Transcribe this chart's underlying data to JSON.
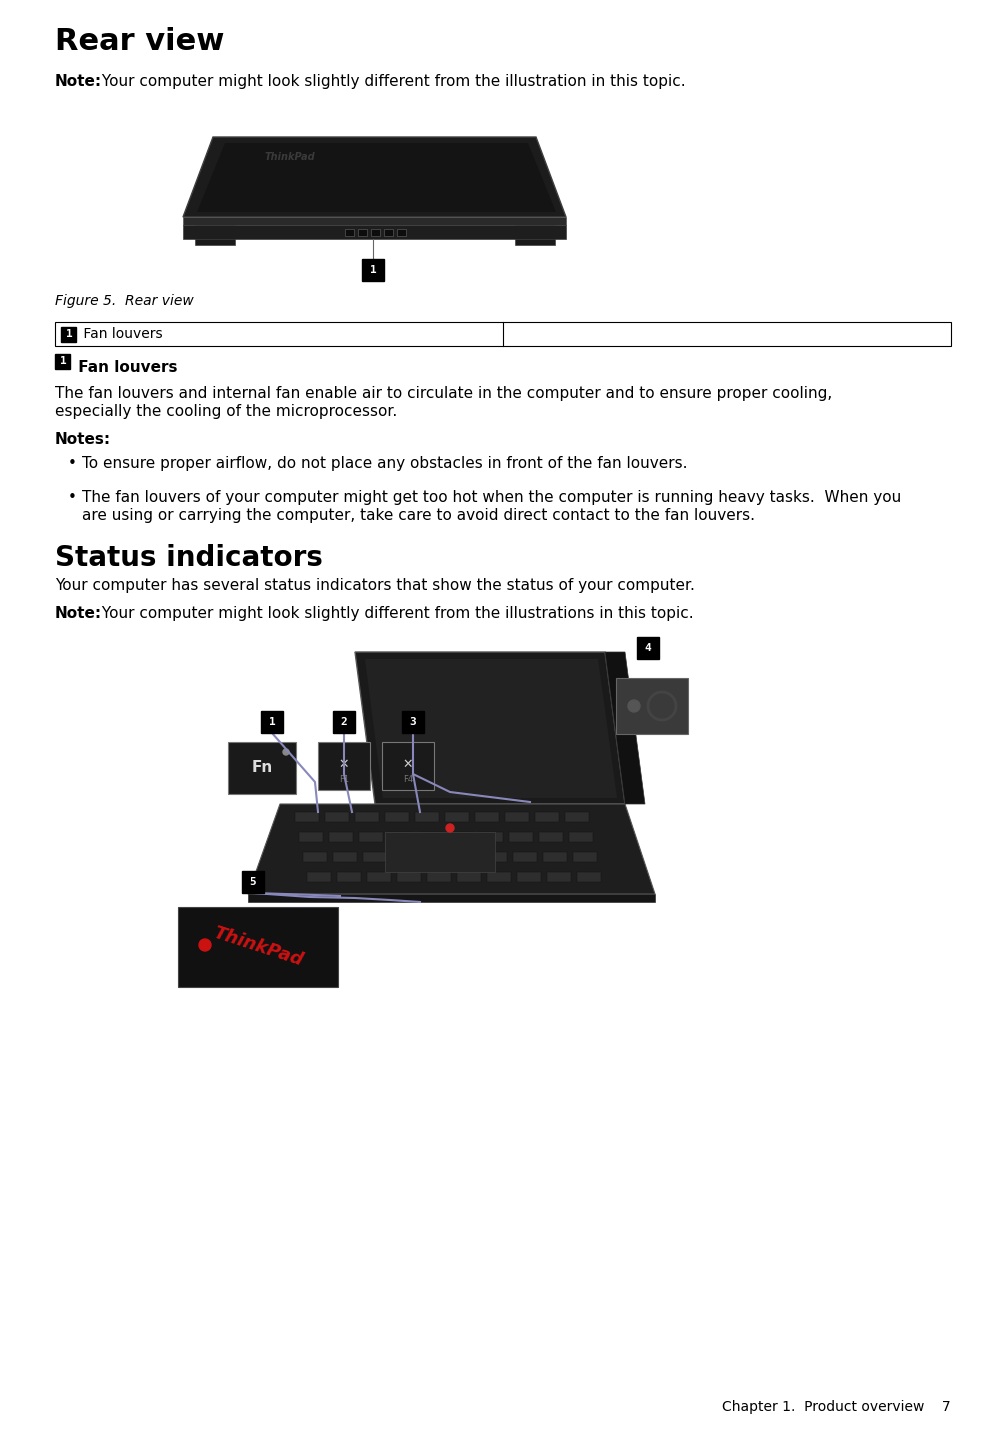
{
  "title": "Rear view",
  "note1_bold": "Note:",
  "note1_text": " Your computer might look slightly different from the illustration in this topic.",
  "figure_caption": "Figure 5.  Rear view",
  "table_cell1": "Fan louvers",
  "section1_title": " Fan louvers",
  "section1_body_line1": "The fan louvers and internal fan enable air to circulate in the computer and to ensure proper cooling,",
  "section1_body_line2": "especially the cooling of the microprocessor.",
  "notes_title": "Notes:",
  "bullet1": "To ensure proper airflow, do not place any obstacles in front of the fan louvers.",
  "bullet2_line1": "The fan louvers of your computer might get too hot when the computer is running heavy tasks.  When you",
  "bullet2_line2": "are using or carrying the computer, take care to avoid direct contact to the fan louvers.",
  "section2_title": "Status indicators",
  "section2_body": "Your computer has several status indicators that show the status of your computer.",
  "note2_bold": "Note:",
  "note2_text": " Your computer might look slightly different from the illustrations in this topic.",
  "footer_text": "Chapter 1.  Product overview",
  "footer_page": "7",
  "bg_color": "#ffffff",
  "text_color": "#000000",
  "badge_bg": "#000000",
  "badge_fg": "#ffffff"
}
